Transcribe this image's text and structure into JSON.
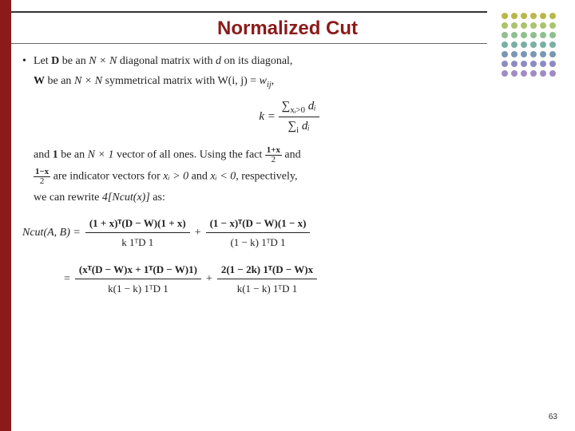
{
  "slide": {
    "title": "Normalized Cut",
    "page_number": "63",
    "left_bar_color": "#8b1a1a",
    "title_color": "#8b1a1a",
    "background": "#ffffff"
  },
  "dot_colors": {
    "row1": "#b8b84a",
    "row2": "#a9c46c",
    "row3": "#8fbf8f",
    "row4": "#7ab0a4",
    "row5": "#7a97b5",
    "row6": "#8b8bc4",
    "row7": "#a08bc4"
  },
  "text": {
    "line1_pre": "Let ",
    "line1_D": "D",
    "line1_mid1": " be an ",
    "line1_NN": "N × N",
    "line1_mid2": " diagonal matrix with ",
    "line1_d": "d",
    "line1_end": " on its diagonal,",
    "line2_W": "W",
    "line2_mid1": " be an ",
    "line2_NN": "N × N",
    "line2_mid2": " symmetrical matrix with ",
    "line2_Wij": "W(i, j) = ",
    "line2_wij_w": "w",
    "line2_wij_ij": "ij",
    "line2_end": ",",
    "k_lhs": "k = ",
    "k_num_pre": "∑",
    "k_num_cond": "xᵢ>0",
    "k_num_di": " dᵢ",
    "k_den_pre": "∑",
    "k_den_i": "i",
    "k_den_di": " dᵢ",
    "line3_pre": "and ",
    "line3_one": "1",
    "line3_mid1": " be an ",
    "line3_N1": "N × 1",
    "line3_mid2": " vector of all ones. Using the fact ",
    "frac_pos_num": "1+x",
    "frac_pos_den": "2",
    "line3_end": " and",
    "line4_frac_neg_num": "1−x",
    "line4_frac_neg_den": "2",
    "line4_mid": " are indicator vectors for ",
    "line4_xi_pos": "xᵢ > 0",
    "line4_and": " and ",
    "line4_xi_neg": "xᵢ < 0",
    "line4_end": ", respectively,",
    "line5": "we can rewrite ",
    "line5_expr": "4[Ncut(x)]",
    "line5_end": " as:"
  },
  "eq": {
    "lead1": "Ncut(A, B) =",
    "t1_num": "(1 + x)ᵀ(D − W)(1 + x)",
    "t1_den": "k 1ᵀD 1",
    "t2_num": "(1 − x)ᵀ(D − W)(1 − x)",
    "t2_den": "(1 − k) 1ᵀD 1",
    "lead2": "  =",
    "t3_num": "(xᵀ(D − W)x + 1ᵀ(D − W)1)",
    "t3_den": "k(1 − k) 1ᵀD 1",
    "t4_num": "2(1 − 2k) 1ᵀ(D − W)x",
    "t4_den": "k(1 − k) 1ᵀD 1",
    "plus": "+"
  }
}
